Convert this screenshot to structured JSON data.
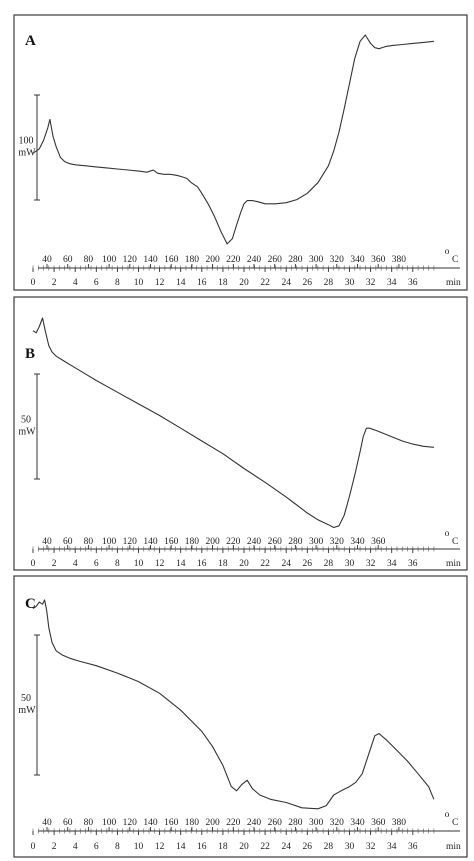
{
  "chart_data": [
    {
      "type": "line",
      "panel_label": "A",
      "ylabel_value": "100",
      "ylabel_unit": "mW",
      "temperature_unit": "C",
      "temperature_unit_superscript": "o",
      "time_unit": "min",
      "temperature_ticks": [
        "40",
        "60",
        "80",
        "100",
        "120",
        "140",
        "160",
        "180",
        "200",
        "220",
        "240",
        "260",
        "280",
        "300",
        "320",
        "340",
        "360",
        "380"
      ],
      "time_ticks": [
        "0",
        "2",
        "4",
        "6",
        "8",
        "10",
        "12",
        "14",
        "16",
        "18",
        "20",
        "22",
        "24",
        "26",
        "28",
        "30",
        "32",
        "34",
        "36"
      ],
      "grid": false,
      "series": [
        {
          "x_min": [
            0,
            0.6,
            1.0,
            1.4,
            1.6,
            1.9,
            2.2,
            2.6,
            3.0,
            3.5,
            4.0,
            5,
            6,
            7,
            8,
            9,
            10,
            10.8,
            11.4,
            11.8,
            12.4,
            13,
            13.6,
            14,
            14.6,
            15,
            15.6,
            16,
            16.6,
            17.2,
            17.8,
            18.4,
            18.9,
            19.3,
            19.7,
            20,
            20.3,
            20.8,
            21.3,
            22,
            23,
            24,
            25,
            26,
            27,
            28,
            28.5,
            29,
            29.5,
            30,
            30.5,
            31,
            31.5,
            32,
            32.4,
            32.8,
            33.4,
            34,
            35,
            36,
            37,
            38
          ],
          "y_rel": [
            0.44,
            0.46,
            0.5,
            0.56,
            0.6,
            0.52,
            0.47,
            0.42,
            0.4,
            0.39,
            0.385,
            0.38,
            0.375,
            0.37,
            0.365,
            0.36,
            0.355,
            0.35,
            0.36,
            0.345,
            0.34,
            0.34,
            0.335,
            0.33,
            0.32,
            0.3,
            0.28,
            0.25,
            0.2,
            0.14,
            0.07,
            0.01,
            0.035,
            0.1,
            0.16,
            0.2,
            0.215,
            0.215,
            0.21,
            0.2,
            0.2,
            0.205,
            0.22,
            0.25,
            0.3,
            0.38,
            0.45,
            0.54,
            0.65,
            0.77,
            0.89,
            0.97,
            1.0,
            0.96,
            0.94,
            0.935,
            0.945,
            0.95,
            0.955,
            0.96,
            0.965,
            0.97
          ]
        }
      ]
    },
    {
      "type": "line",
      "panel_label": "B",
      "ylabel_value": "50",
      "ylabel_unit": "mW",
      "temperature_unit": "C",
      "temperature_unit_superscript": "o",
      "time_unit": "min",
      "temperature_ticks": [
        "40",
        "60",
        "80",
        "100",
        "120",
        "140",
        "160",
        "180",
        "200",
        "220",
        "240",
        "260",
        "280",
        "300",
        "320",
        "340",
        "360"
      ],
      "time_ticks": [
        "0",
        "2",
        "4",
        "6",
        "8",
        "10",
        "12",
        "14",
        "16",
        "18",
        "20",
        "22",
        "24",
        "26",
        "28",
        "30",
        "32",
        "34",
        "36"
      ],
      "grid": false,
      "series": [
        {
          "x_min": [
            0,
            0.3,
            0.6,
            0.9,
            1.2,
            1.5,
            1.8,
            2.2,
            3,
            4,
            5,
            6,
            8,
            10,
            12,
            14,
            16,
            18,
            20,
            22,
            24,
            25,
            26,
            27,
            28,
            28.5,
            29,
            29.5,
            30,
            30.5,
            31,
            31.3,
            31.6,
            31.9,
            32.2,
            32.5,
            33,
            34,
            35,
            36,
            37,
            38
          ],
          "y_rel": [
            0.94,
            0.93,
            0.96,
            1.0,
            0.93,
            0.87,
            0.84,
            0.82,
            0.795,
            0.765,
            0.735,
            0.705,
            0.65,
            0.595,
            0.54,
            0.48,
            0.42,
            0.36,
            0.29,
            0.225,
            0.155,
            0.118,
            0.08,
            0.048,
            0.025,
            0.012,
            0.02,
            0.07,
            0.16,
            0.26,
            0.37,
            0.44,
            0.48,
            0.48,
            0.475,
            0.47,
            0.46,
            0.44,
            0.42,
            0.405,
            0.395,
            0.39
          ]
        }
      ]
    },
    {
      "type": "line",
      "panel_label": "C",
      "ylabel_value": "50",
      "ylabel_unit": "mW",
      "temperature_unit": "C",
      "temperature_unit_superscript": "o",
      "time_unit": "min",
      "temperature_ticks": [
        "40",
        "60",
        "80",
        "100",
        "120",
        "140",
        "160",
        "180",
        "200",
        "220",
        "240",
        "260",
        "280",
        "300",
        "320",
        "340",
        "360",
        "380"
      ],
      "time_ticks": [
        "0",
        "2",
        "4",
        "6",
        "8",
        "10",
        "12",
        "14",
        "16",
        "18",
        "20",
        "22",
        "24",
        "26",
        "28",
        "30",
        "32",
        "34",
        "36"
      ],
      "grid": false,
      "series": [
        {
          "x_min": [
            0,
            0.3,
            0.6,
            0.9,
            1.1,
            1.3,
            1.5,
            1.8,
            2.2,
            2.8,
            3.5,
            4.5,
            6,
            8,
            10,
            12,
            14,
            16,
            17,
            18,
            18.8,
            19.3,
            19.8,
            20.3,
            20.8,
            21.5,
            22.5,
            24,
            25.5,
            27,
            27.8,
            28.5,
            29.2,
            30,
            30.6,
            31.2,
            31.6,
            32,
            32.4,
            32.8,
            33.5,
            34.5,
            35.5,
            36.5,
            37.5,
            38
          ],
          "y_rel": [
            0.96,
            0.97,
            0.99,
            0.98,
            1.0,
            0.95,
            0.87,
            0.8,
            0.76,
            0.74,
            0.725,
            0.71,
            0.69,
            0.655,
            0.615,
            0.56,
            0.48,
            0.38,
            0.31,
            0.22,
            0.12,
            0.1,
            0.13,
            0.15,
            0.11,
            0.08,
            0.06,
            0.045,
            0.02,
            0.015,
            0.03,
            0.08,
            0.1,
            0.12,
            0.14,
            0.18,
            0.24,
            0.3,
            0.36,
            0.37,
            0.34,
            0.29,
            0.24,
            0.18,
            0.12,
            0.06
          ]
        }
      ]
    }
  ]
}
